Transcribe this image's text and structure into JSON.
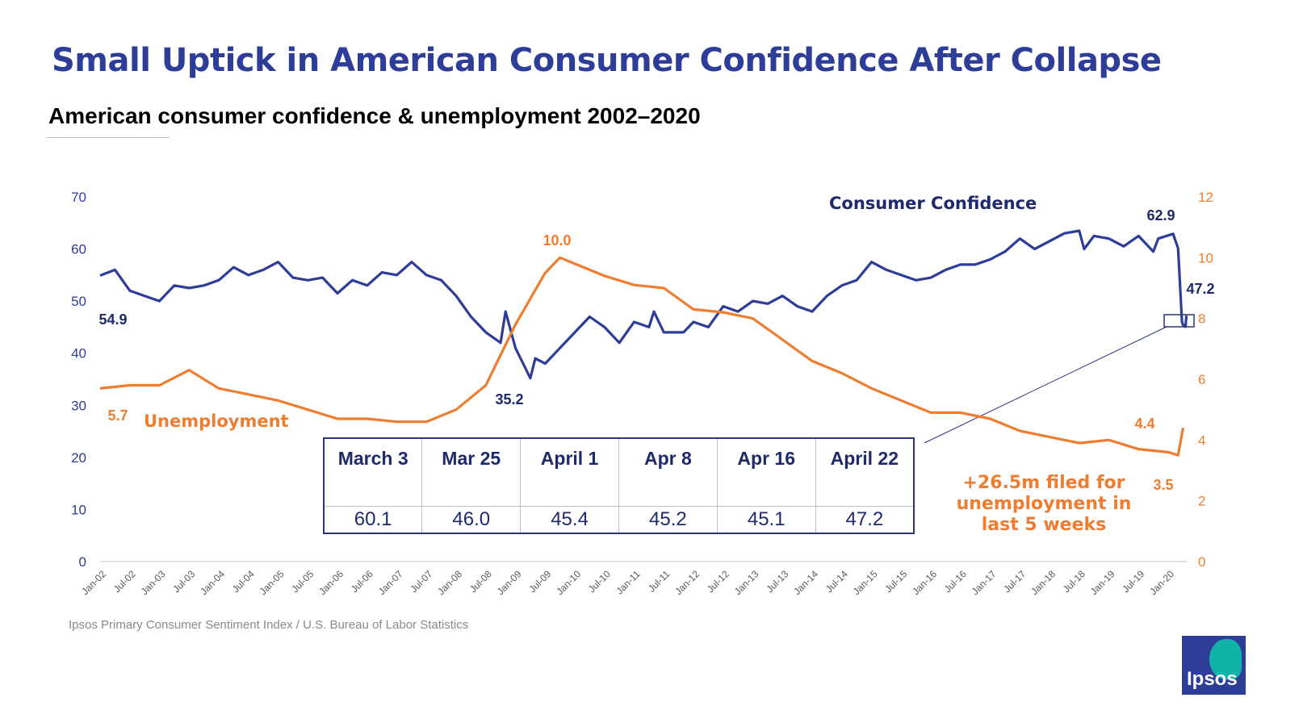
{
  "title": "Small Uptick in American Consumer Confidence After Collapse",
  "subtitle": "American consumer confidence & unemployment 2002–2020",
  "source": "Ipsos Primary Consumer Sentiment Index / U.S. Bureau of Labor Statistics",
  "logo_text": "Ipsos",
  "note": "+26.5m filed for unemployment in last 5 weeks",
  "table": {
    "headers": [
      "March 3",
      "Mar 25",
      "April 1",
      "Apr 8",
      "Apr 16",
      "April 22"
    ],
    "values": [
      "60.1",
      "46.0",
      "45.4",
      "45.2",
      "45.1",
      "47.2"
    ]
  },
  "colors": {
    "confidence": "#2e3d98",
    "unemployment": "#ed7d31",
    "label_dark": "#1f2a6b"
  },
  "chart_data": {
    "type": "line",
    "x_ticks": [
      "Jan-02",
      "Jul-02",
      "Jan-03",
      "Jul-03",
      "Jan-04",
      "Jul-04",
      "Jan-05",
      "Jul-05",
      "Jan-06",
      "Jul-06",
      "Jan-07",
      "Jul-07",
      "Jan-08",
      "Jul-08",
      "Jan-09",
      "Jul-09",
      "Jan-10",
      "Jul-10",
      "Jan-11",
      "Jul-11",
      "Jan-12",
      "Jul-12",
      "Jan-13",
      "Jul-13",
      "Jan-14",
      "Jul-14",
      "Jan-15",
      "Jul-15",
      "Jan-16",
      "Jul-16",
      "Jan-17",
      "Jul-17",
      "Jan-18",
      "Jul-18",
      "Jan-19",
      "Jul-19",
      "Jan-20"
    ],
    "y_left": {
      "ticks": [
        "0",
        "10",
        "20",
        "30",
        "40",
        "50",
        "60",
        "70"
      ],
      "range": [
        0,
        70
      ]
    },
    "y_right": {
      "ticks": [
        "0",
        "2",
        "4",
        "6",
        "8",
        "10",
        "12"
      ],
      "range": [
        0,
        12
      ]
    },
    "grid": false,
    "series": [
      {
        "name": "Consumer Confidence",
        "axis": "left",
        "points": [
          [
            "2002-01",
            54.9
          ],
          [
            "2002-04",
            56
          ],
          [
            "2002-07",
            52
          ],
          [
            "2002-10",
            51
          ],
          [
            "2003-01",
            50
          ],
          [
            "2003-04",
            53
          ],
          [
            "2003-07",
            52.5
          ],
          [
            "2003-10",
            53
          ],
          [
            "2004-01",
            54
          ],
          [
            "2004-04",
            56.5
          ],
          [
            "2004-07",
            55
          ],
          [
            "2004-10",
            56
          ],
          [
            "2005-01",
            57.5
          ],
          [
            "2005-04",
            54.5
          ],
          [
            "2005-07",
            54
          ],
          [
            "2005-10",
            54.5
          ],
          [
            "2006-01",
            51.5
          ],
          [
            "2006-04",
            54
          ],
          [
            "2006-07",
            53
          ],
          [
            "2006-10",
            55.5
          ],
          [
            "2007-01",
            55
          ],
          [
            "2007-04",
            57.5
          ],
          [
            "2007-07",
            55
          ],
          [
            "2007-10",
            54
          ],
          [
            "2008-01",
            51
          ],
          [
            "2008-04",
            47
          ],
          [
            "2008-07",
            44
          ],
          [
            "2008-10",
            42
          ],
          [
            "2008-11",
            48
          ],
          [
            "2009-01",
            41
          ],
          [
            "2009-04",
            35.2
          ],
          [
            "2009-05",
            39
          ],
          [
            "2009-07",
            38
          ],
          [
            "2009-10",
            41
          ],
          [
            "2010-01",
            44
          ],
          [
            "2010-04",
            47
          ],
          [
            "2010-07",
            45
          ],
          [
            "2010-10",
            42
          ],
          [
            "2011-01",
            46
          ],
          [
            "2011-04",
            45
          ],
          [
            "2011-05",
            48
          ],
          [
            "2011-07",
            44
          ],
          [
            "2011-11",
            44
          ],
          [
            "2012-01",
            46
          ],
          [
            "2012-04",
            45
          ],
          [
            "2012-07",
            49
          ],
          [
            "2012-10",
            48
          ],
          [
            "2013-01",
            50
          ],
          [
            "2013-04",
            49.5
          ],
          [
            "2013-07",
            51
          ],
          [
            "2013-10",
            49
          ],
          [
            "2014-01",
            48
          ],
          [
            "2014-04",
            51
          ],
          [
            "2014-07",
            53
          ],
          [
            "2014-10",
            54
          ],
          [
            "2015-01",
            57.5
          ],
          [
            "2015-04",
            56
          ],
          [
            "2015-07",
            55
          ],
          [
            "2015-10",
            54
          ],
          [
            "2016-01",
            54.5
          ],
          [
            "2016-04",
            56
          ],
          [
            "2016-07",
            57
          ],
          [
            "2016-10",
            57
          ],
          [
            "2017-01",
            58
          ],
          [
            "2017-04",
            59.5
          ],
          [
            "2017-07",
            62
          ],
          [
            "2017-10",
            60
          ],
          [
            "2018-01",
            61.5
          ],
          [
            "2018-04",
            63
          ],
          [
            "2018-07",
            63.5
          ],
          [
            "2018-08",
            60
          ],
          [
            "2018-10",
            62.5
          ],
          [
            "2019-01",
            62
          ],
          [
            "2019-04",
            60.5
          ],
          [
            "2019-07",
            62.5
          ],
          [
            "2019-10",
            59.5
          ],
          [
            "2019-11",
            62
          ],
          [
            "2020-02",
            62.9
          ],
          [
            "2020-03",
            60.1
          ],
          [
            "2020-03-25",
            46.0
          ],
          [
            "2020-04-01",
            45.4
          ],
          [
            "2020-04-08",
            45.2
          ],
          [
            "2020-04-16",
            45.1
          ],
          [
            "2020-04-22",
            47.2
          ]
        ]
      },
      {
        "name": "Unemployment",
        "axis": "right",
        "points": [
          [
            "2002-01",
            5.7
          ],
          [
            "2002-07",
            5.8
          ],
          [
            "2003-01",
            5.8
          ],
          [
            "2003-07",
            6.3
          ],
          [
            "2004-01",
            5.7
          ],
          [
            "2004-07",
            5.5
          ],
          [
            "2005-01",
            5.3
          ],
          [
            "2005-07",
            5.0
          ],
          [
            "2006-01",
            4.7
          ],
          [
            "2006-07",
            4.7
          ],
          [
            "2007-01",
            4.6
          ],
          [
            "2007-07",
            4.6
          ],
          [
            "2008-01",
            5.0
          ],
          [
            "2008-07",
            5.8
          ],
          [
            "2009-01",
            7.8
          ],
          [
            "2009-07",
            9.5
          ],
          [
            "2009-10",
            10.0
          ],
          [
            "2010-01",
            9.8
          ],
          [
            "2010-07",
            9.4
          ],
          [
            "2011-01",
            9.1
          ],
          [
            "2011-07",
            9.0
          ],
          [
            "2012-01",
            8.3
          ],
          [
            "2012-07",
            8.2
          ],
          [
            "2013-01",
            8.0
          ],
          [
            "2013-07",
            7.3
          ],
          [
            "2014-01",
            6.6
          ],
          [
            "2014-07",
            6.2
          ],
          [
            "2015-01",
            5.7
          ],
          [
            "2015-07",
            5.3
          ],
          [
            "2016-01",
            4.9
          ],
          [
            "2016-07",
            4.9
          ],
          [
            "2017-01",
            4.7
          ],
          [
            "2017-07",
            4.3
          ],
          [
            "2018-01",
            4.1
          ],
          [
            "2018-07",
            3.9
          ],
          [
            "2019-01",
            4.0
          ],
          [
            "2019-07",
            3.7
          ],
          [
            "2020-01",
            3.6
          ],
          [
            "2020-03",
            3.5
          ],
          [
            "2020-04",
            4.4
          ]
        ]
      }
    ],
    "annotations": [
      {
        "text": "54.9",
        "series": "Consumer Confidence"
      },
      {
        "text": "35.2",
        "series": "Consumer Confidence"
      },
      {
        "text": "62.9",
        "series": "Consumer Confidence"
      },
      {
        "text": "47.2",
        "series": "Consumer Confidence"
      },
      {
        "text": "5.7",
        "series": "Unemployment"
      },
      {
        "text": "10.0",
        "series": "Unemployment"
      },
      {
        "text": "4.4",
        "series": "Unemployment"
      },
      {
        "text": "3.5",
        "series": "Unemployment"
      }
    ]
  }
}
